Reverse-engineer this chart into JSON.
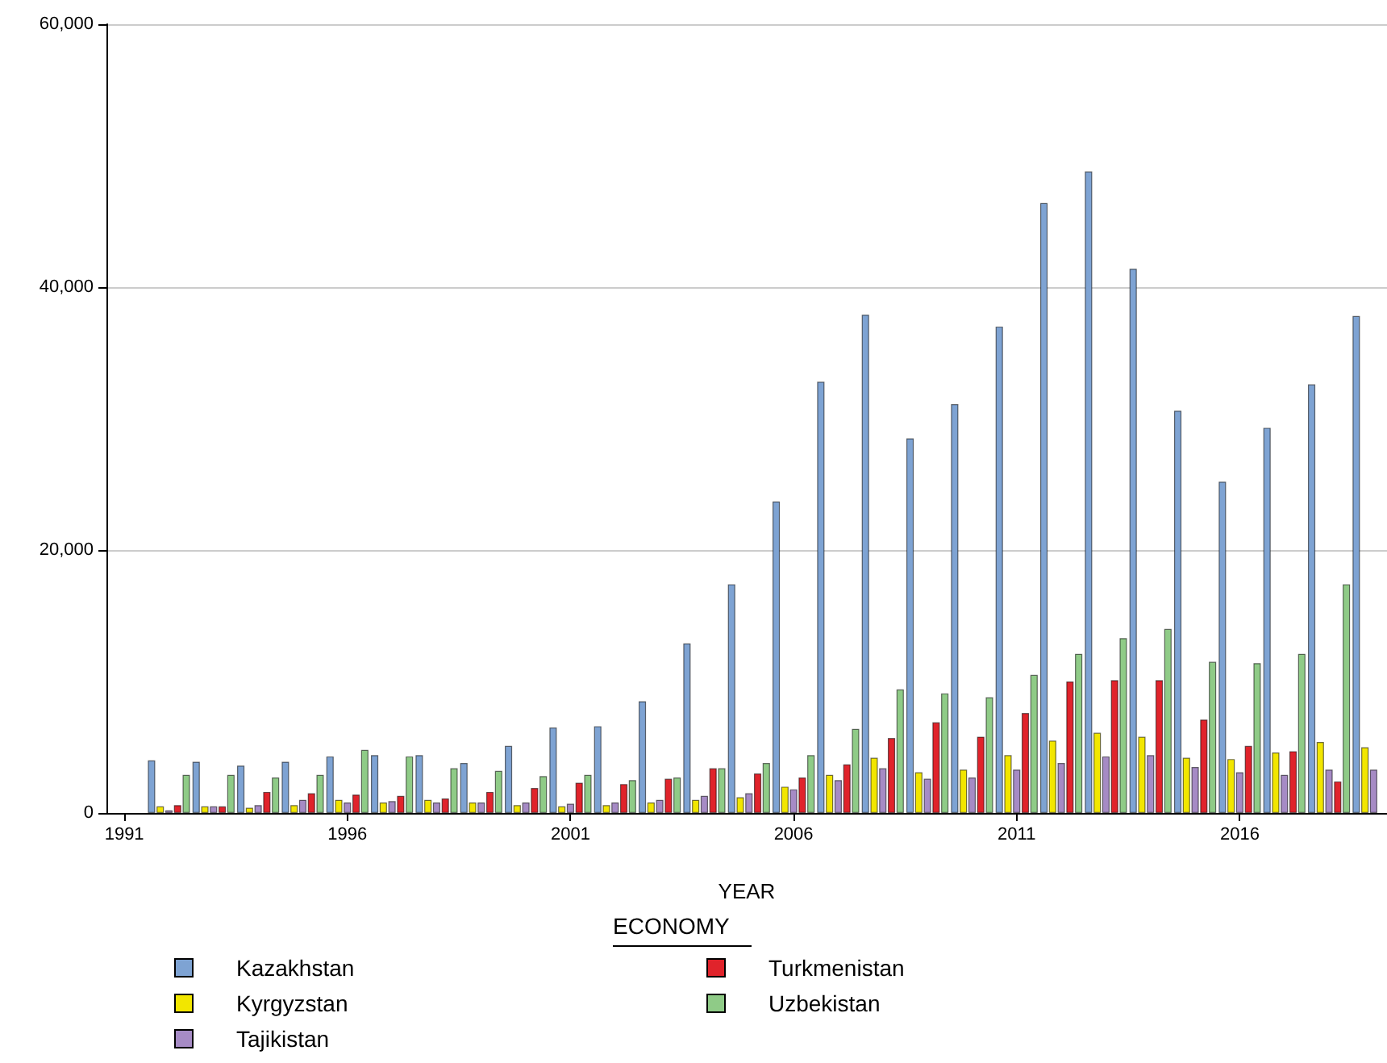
{
  "chart_data": {
    "type": "bar",
    "xlabel": "YEAR",
    "legend_title": "ECONOMY",
    "x": [
      1992,
      1993,
      1994,
      1995,
      1996,
      1997,
      1998,
      1999,
      2000,
      2001,
      2002,
      2003,
      2004,
      2005,
      2006,
      2007,
      2008,
      2009,
      2010,
      2011,
      2012,
      2013,
      2014,
      2015,
      2016,
      2017,
      2018,
      2019
    ],
    "xlim": [
      1990.6,
      2019.3
    ],
    "xticks": [
      1991,
      1996,
      2001,
      2006,
      2011,
      2016
    ],
    "ylim": [
      0,
      60000
    ],
    "yticks": [
      0,
      {
        "value": 20000,
        "label": "20,000"
      },
      {
        "value": 40000,
        "label": "40,000"
      },
      {
        "value": 60000,
        "label": "60,000"
      }
    ],
    "grid": "y",
    "legend": "bottom",
    "series": [
      {
        "name": "Kazakhstan",
        "color": "#7ea3d3",
        "values": [
          4000,
          3900,
          3600,
          3900,
          4300,
          4400,
          4400,
          3800,
          5100,
          6500,
          6600,
          8500,
          12900,
          17400,
          23700,
          32800,
          37900,
          28500,
          31100,
          37000,
          46400,
          48800,
          41400,
          30600,
          25200,
          29300,
          32600,
          37800
        ]
      },
      {
        "name": "Kyrgyzstan",
        "color": "#f2e600",
        "values": [
          500,
          500,
          400,
          600,
          1000,
          800,
          1000,
          800,
          600,
          500,
          600,
          800,
          1000,
          1200,
          2000,
          2900,
          4200,
          3100,
          3300,
          4400,
          5500,
          6100,
          5800,
          4200,
          4100,
          4600,
          5400,
          5000
        ]
      },
      {
        "name": "Tajikistan",
        "color": "#a68bc5",
        "values": [
          200,
          500,
          600,
          1000,
          800,
          900,
          800,
          800,
          800,
          700,
          800,
          1000,
          1300,
          1500,
          1800,
          2500,
          3400,
          2600,
          2700,
          3300,
          3800,
          4300,
          4400,
          3500,
          3100,
          2900,
          3300,
          3300
        ]
      },
      {
        "name": "Turkmenistan",
        "color": "#e0232b",
        "values": [
          600,
          500,
          1600,
          1500,
          1400,
          1300,
          1100,
          1600,
          1900,
          2300,
          2200,
          2600,
          3400,
          3000,
          2700,
          3700,
          5700,
          6900,
          5800,
          7600,
          10000,
          10100,
          10100,
          7100,
          5100,
          4700,
          2400,
          null
        ]
      },
      {
        "name": "Uzbekistan",
        "color": "#8fcb87",
        "values": [
          2900,
          2900,
          2700,
          2900,
          4800,
          4300,
          3400,
          3200,
          2800,
          2900,
          2500,
          2700,
          3400,
          3800,
          4400,
          6400,
          9400,
          9100,
          8800,
          10500,
          12100,
          13300,
          14000,
          11500,
          11400,
          12100,
          17400,
          null
        ]
      }
    ]
  }
}
